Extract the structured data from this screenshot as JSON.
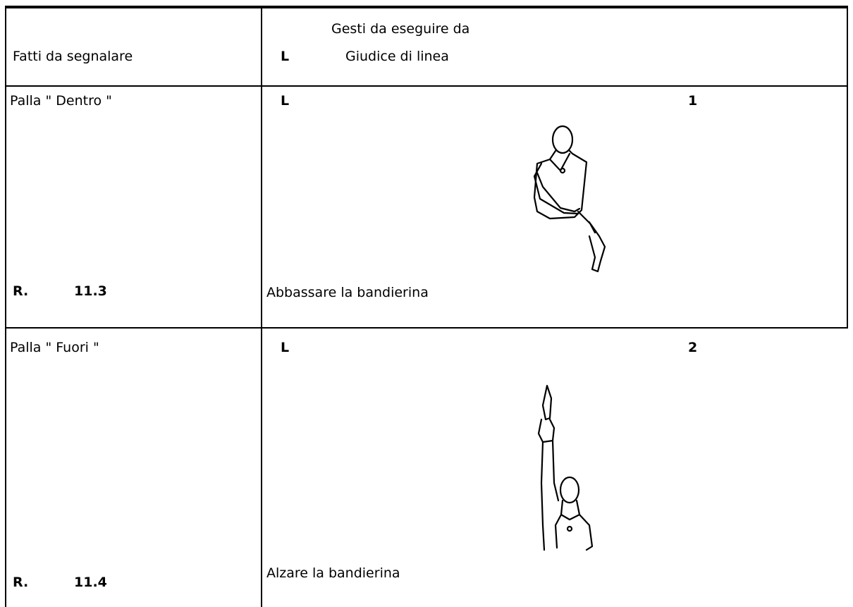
{
  "table": {
    "header": {
      "facts": "Fatti da segnalare",
      "gestures_line1": "Gesti da eseguire da",
      "gestures_code": "L",
      "gestures_line2": "Giudice di linea"
    },
    "rows": [
      {
        "fact": "Palla \" Dentro \"",
        "code": "L",
        "number": "1",
        "rule_prefix": "R.",
        "rule": "11.3",
        "description": "Abbassare la bandierina"
      },
      {
        "fact": "Palla \" Fuori \"",
        "code": "L",
        "number": "2",
        "rule_prefix": "R.",
        "rule": "11.4",
        "description": "Alzare la bandierina"
      }
    ]
  }
}
